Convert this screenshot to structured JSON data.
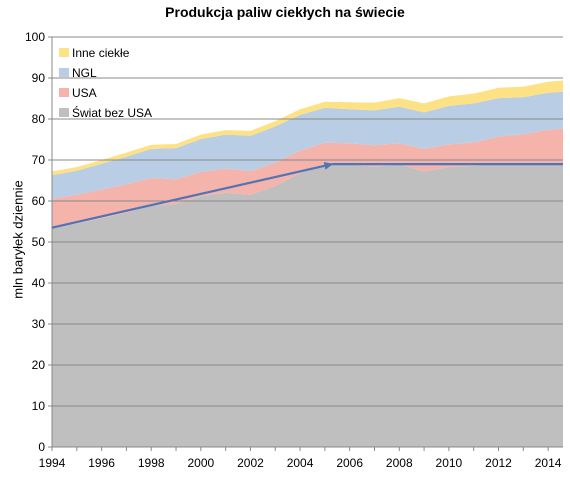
{
  "chart_data": {
    "type": "area",
    "title": "Produkcja paliw ciekłych na świecie",
    "xlabel": "",
    "ylabel": "mln baryłek dziennie",
    "xlim": [
      1994,
      2014.6
    ],
    "ylim": [
      0,
      100
    ],
    "x_ticks": [
      "1994",
      "1996",
      "1998",
      "2000",
      "2002",
      "2004",
      "2006",
      "2008",
      "2010",
      "2012",
      "2014"
    ],
    "y_ticks": [
      "0",
      "10",
      "20",
      "30",
      "40",
      "50",
      "60",
      "70",
      "80",
      "90",
      "100"
    ],
    "grid": true,
    "legend_position": "top-left",
    "stacked": true,
    "x": [
      1994,
      1995,
      1996,
      1997,
      1998,
      1999,
      2000,
      2001,
      2002,
      2003,
      2004,
      2005,
      2006,
      2007,
      2008,
      2009,
      2010,
      2011,
      2012,
      2013,
      2014,
      2014.6
    ],
    "series": [
      {
        "name": "Świat bez USA",
        "color": "#bfbfbf",
        "values": [
          53.5,
          54.5,
          55.8,
          57.2,
          58.8,
          59.3,
          61.2,
          62.0,
          61.5,
          63.7,
          66.8,
          69.0,
          68.9,
          68.4,
          69.0,
          67.2,
          68.3,
          68.6,
          69.2,
          68.8,
          69.0,
          69.0
        ]
      },
      {
        "name": "USA",
        "color": "#f4b3ab",
        "values": [
          7.0,
          7.0,
          7.0,
          6.9,
          6.8,
          6.0,
          5.9,
          5.9,
          5.8,
          5.7,
          5.5,
          5.2,
          5.2,
          5.2,
          5.1,
          5.5,
          5.5,
          5.7,
          6.5,
          7.5,
          8.4,
          8.6
        ]
      },
      {
        "name": "NGL",
        "color": "#b9cde4",
        "values": [
          5.8,
          5.9,
          6.3,
          6.7,
          7.1,
          7.6,
          8.0,
          8.3,
          8.6,
          8.8,
          8.7,
          8.5,
          8.3,
          8.5,
          8.9,
          8.9,
          9.4,
          9.5,
          9.4,
          9.0,
          9.0,
          9.0
        ]
      },
      {
        "name": "Inne ciekłe",
        "color": "#fde285",
        "values": [
          0.9,
          0.9,
          0.9,
          1.0,
          1.0,
          1.0,
          1.1,
          1.1,
          1.2,
          1.3,
          1.4,
          1.5,
          1.7,
          1.9,
          2.1,
          2.2,
          2.3,
          2.4,
          2.5,
          2.6,
          2.7,
          2.8
        ]
      }
    ],
    "annotations": [
      {
        "type": "arrow",
        "from": [
          1994,
          53.5
        ],
        "to": [
          2005.3,
          69.0
        ],
        "color": "#4f75b6"
      },
      {
        "type": "line",
        "from": [
          2005.3,
          69.0
        ],
        "to": [
          2014.6,
          69.0
        ],
        "color": "#4f75b6"
      }
    ],
    "colors": {
      "grid": "#898989",
      "axis": "#898989",
      "arrow": "#4f75b6"
    }
  }
}
